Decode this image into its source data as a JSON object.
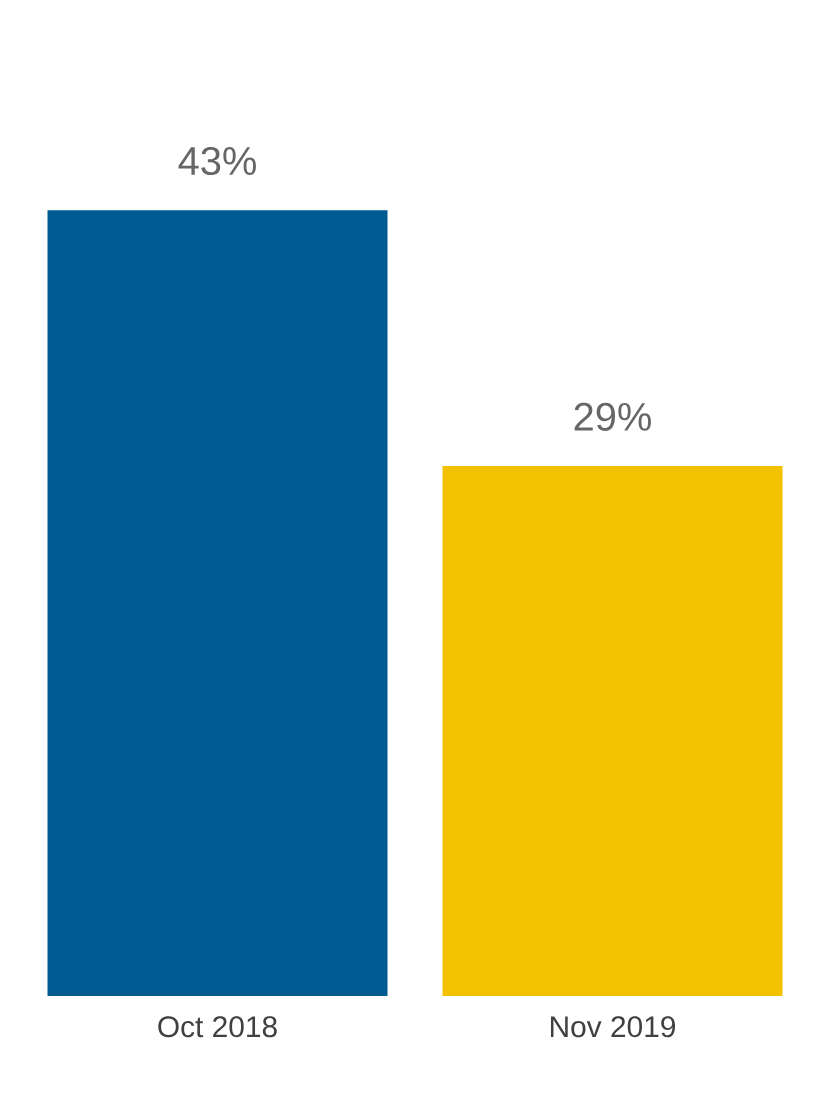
{
  "chart_data": {
    "type": "bar",
    "categories": [
      "Oct 2018",
      "Nov 2019"
    ],
    "values": [
      43,
      29
    ],
    "colors": [
      "#005a92",
      "#f2c200"
    ],
    "value_labels": [
      "43%",
      "29%"
    ]
  }
}
